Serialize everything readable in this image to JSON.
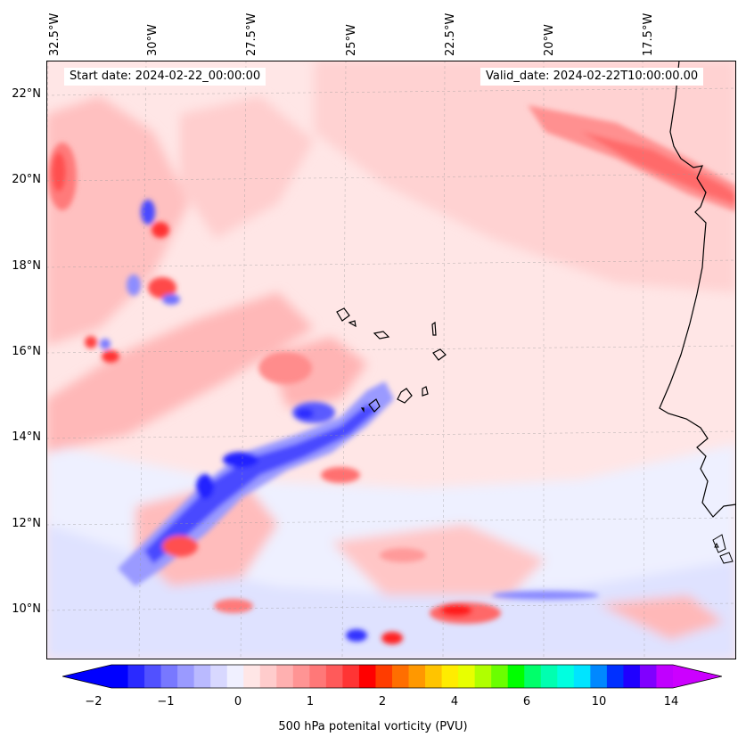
{
  "map": {
    "start_label": "Start date: 2024-02-22_00:00:00",
    "valid_label": "Valid_date: 2024-02-22T10:00:00.00",
    "lon_labels": [
      "32.5°W",
      "30°W",
      "27.5°W",
      "25°W",
      "22.5°W",
      "20°W",
      "17.5°W"
    ],
    "lat_labels": [
      "22°N",
      "20°N",
      "18°N",
      "16°N",
      "14°N",
      "12°N",
      "10°N"
    ],
    "field": "500 hPa potential vorticity",
    "region": {
      "lon_range": [
        -33,
        -15.5
      ],
      "lat_range": [
        8.9,
        22.8
      ]
    }
  },
  "colorbar": {
    "title": "500 hPa potenital vorticity (PVU)",
    "tick_labels": [
      "−2",
      "−1",
      "0",
      "1",
      "2",
      "4",
      "6",
      "10",
      "14"
    ],
    "colors": [
      "#0000ff",
      "#2a2aff",
      "#5151ff",
      "#7878ff",
      "#9a9aff",
      "#babaff",
      "#d8d8ff",
      "#f0f0ff",
      "#ffe6e6",
      "#ffcccc",
      "#ffb0b0",
      "#ff9494",
      "#ff7878",
      "#ff5a5a",
      "#ff3434",
      "#ff0000",
      "#ff3c00",
      "#ff6e00",
      "#ff9800",
      "#ffc400",
      "#ffec00",
      "#e8ff00",
      "#b0ff00",
      "#6aff00",
      "#00ff00",
      "#00ff6a",
      "#00ffb0",
      "#00ffe0",
      "#00e4ff",
      "#0088ff",
      "#0030ff",
      "#2000ff",
      "#8000ff",
      "#c000ff"
    ],
    "extend_low_color": "#0000ff",
    "extend_high_color": "#cc00ff"
  }
}
